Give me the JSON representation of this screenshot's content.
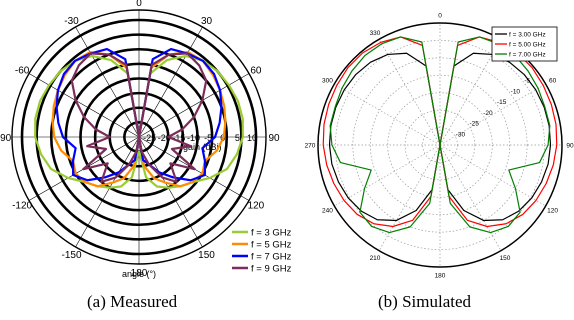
{
  "chart_data": [
    {
      "type": "polar-line",
      "caption": "(a) Measured",
      "radial_ticks": [
        "-25",
        "-20",
        "-15",
        "-10",
        "-5",
        "0",
        "5",
        "10"
      ],
      "r_range": [
        -30,
        10
      ],
      "angle_ticks": [
        "0",
        "30",
        "60",
        "90",
        "120",
        "150",
        "180",
        "-150",
        "-120",
        "-90",
        "-60",
        "-30"
      ],
      "angle_tick_values": [
        0,
        30,
        60,
        90,
        120,
        150,
        180,
        210,
        240,
        270,
        300,
        330
      ],
      "radial_label": "gain (dBi)",
      "angle_label": "angle (°)",
      "legend_position": "bottom-right",
      "series": [
        {
          "name": "f = 3 GHz",
          "color": "#9acd32",
          "angles": [
            0,
            10,
            20,
            30,
            40,
            50,
            60,
            70,
            80,
            90,
            100,
            110,
            120,
            130,
            140,
            150,
            160,
            170,
            180
          ],
          "gains": [
            -30,
            -8,
            -2,
            2,
            4,
            5,
            5.5,
            6,
            6,
            5.5,
            4,
            2,
            -2,
            -6,
            -8,
            -10,
            -12,
            -16,
            -25
          ]
        },
        {
          "name": "f = 5 GHz",
          "color": "#ff8c00",
          "angles": [
            0,
            10,
            20,
            30,
            40,
            50,
            60,
            70,
            80,
            90,
            100,
            110,
            120,
            130,
            140,
            150,
            160,
            170,
            180
          ],
          "gains": [
            -30,
            -6,
            0,
            3.5,
            4,
            3,
            2,
            1,
            0,
            -1,
            -3,
            -6,
            -5,
            -6,
            -8,
            -12,
            -15,
            -20,
            -30
          ]
        },
        {
          "name": "f = 7 GHz",
          "color": "#0000ff",
          "angles": [
            0,
            10,
            20,
            30,
            40,
            50,
            60,
            70,
            80,
            90,
            100,
            110,
            120,
            130,
            140,
            150,
            160,
            170,
            180
          ],
          "gains": [
            -30,
            -3,
            2,
            3,
            4,
            3.5,
            2,
            0,
            -2,
            -4,
            -8,
            -6,
            -4,
            -7,
            -12,
            -16,
            -20,
            -22,
            -30
          ]
        },
        {
          "name": "f = 9 GHz",
          "color": "#7b2d5a",
          "angles": [
            0,
            10,
            20,
            30,
            40,
            50,
            60,
            70,
            80,
            90,
            100,
            110,
            120,
            130,
            140,
            150,
            160,
            170,
            180
          ],
          "gains": [
            -30,
            -5,
            0,
            3,
            2,
            0,
            -5,
            -10,
            -15,
            -20,
            -12,
            -18,
            -8,
            -16,
            -10,
            -14,
            -20,
            -25,
            -30
          ]
        }
      ]
    },
    {
      "type": "polar-line",
      "caption": "(b) Simulated",
      "radial_ticks": [
        "-30",
        "-25",
        "-20",
        "-15",
        "-10",
        "-5"
      ],
      "r_range": [
        -35,
        0
      ],
      "angle_ticks": [
        "0",
        "30",
        "60",
        "90",
        "120",
        "150",
        "180",
        "210",
        "240",
        "270",
        "300",
        "330"
      ],
      "angle_tick_values": [
        0,
        30,
        60,
        90,
        120,
        150,
        180,
        210,
        240,
        270,
        300,
        330
      ],
      "grid": true,
      "legend_position": "top-right",
      "series": [
        {
          "name": "f = 3.00 GHz",
          "color": "#000000",
          "angles": [
            0,
            10,
            20,
            30,
            40,
            50,
            60,
            70,
            80,
            90,
            100,
            110,
            120,
            130,
            140,
            150,
            160,
            170,
            180
          ],
          "gains": [
            -35,
            -12,
            -7,
            -5,
            -4,
            -3.5,
            -3.3,
            -3.2,
            -3.2,
            -3.3,
            -3.5,
            -4,
            -4.6,
            -5.5,
            -7,
            -10,
            -15,
            -22,
            -35
          ]
        },
        {
          "name": "f = 5.00 GHz",
          "color": "#ff0000",
          "angles": [
            0,
            10,
            20,
            30,
            40,
            50,
            60,
            70,
            80,
            90,
            100,
            110,
            120,
            130,
            140,
            150,
            160,
            170,
            180
          ],
          "gains": [
            -35,
            -6,
            -2,
            -1,
            -0.5,
            -0.5,
            -0.8,
            -1,
            -1.2,
            -1.5,
            -2,
            -2.6,
            -3.2,
            -4,
            -5.5,
            -8,
            -12,
            -20,
            -35
          ]
        },
        {
          "name": "f = 7.00 GHz",
          "color": "#008000",
          "angles": [
            0,
            10,
            20,
            30,
            40,
            50,
            60,
            70,
            80,
            90,
            100,
            110,
            120,
            130,
            140,
            150,
            160,
            170,
            180
          ],
          "gains": [
            -35,
            -5,
            -2,
            -1.5,
            -1.5,
            -2,
            -2.5,
            -3,
            -3,
            -4,
            -6,
            -14,
            -10,
            -5,
            -4.5,
            -6,
            -10,
            -18,
            -35
          ]
        }
      ]
    }
  ]
}
